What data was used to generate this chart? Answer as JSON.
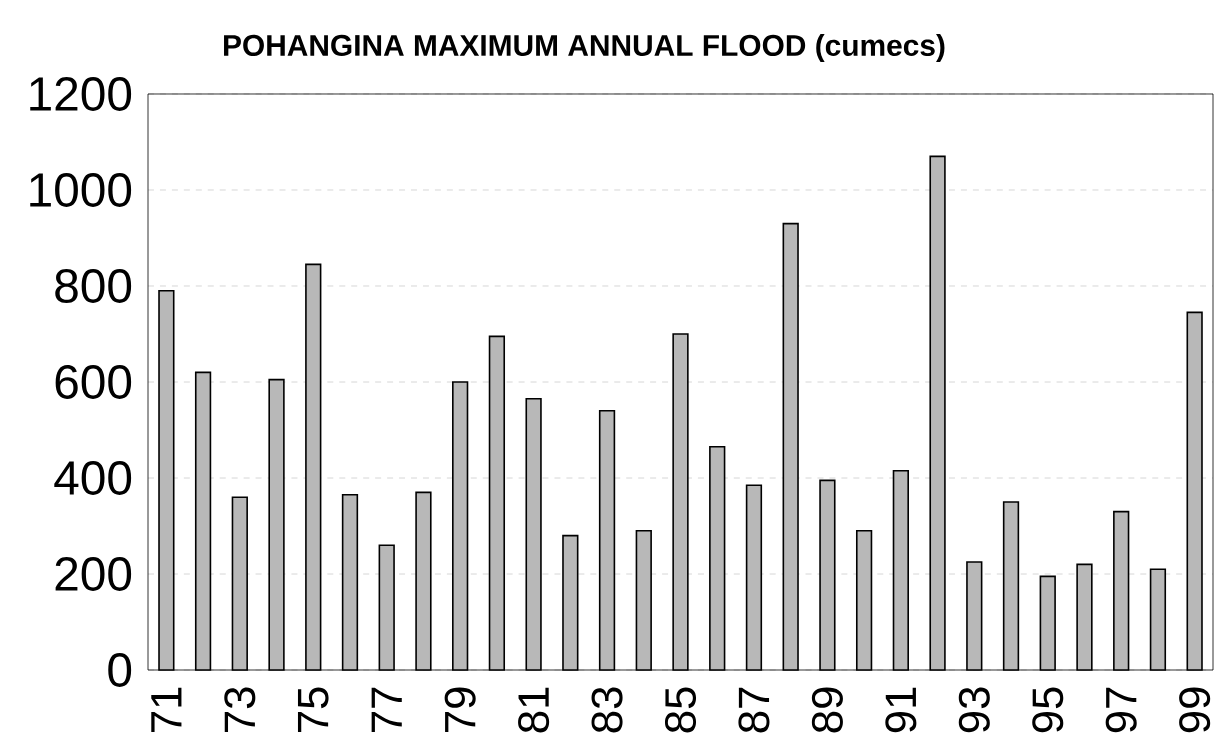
{
  "chart_data": {
    "type": "bar",
    "title": "POHANGINA MAXIMUM ANNUAL FLOOD (cumecs)",
    "categories": [
      "71",
      null,
      "73",
      null,
      "75",
      null,
      "77",
      null,
      "79",
      null,
      "81",
      null,
      "83",
      null,
      "85",
      null,
      "87",
      null,
      "89",
      null,
      "91",
      null,
      "93",
      null,
      "95",
      null,
      "97",
      null,
      "99"
    ],
    "values": [
      790,
      620,
      360,
      605,
      845,
      365,
      260,
      370,
      600,
      695,
      565,
      280,
      540,
      290,
      700,
      465,
      385,
      930,
      395,
      290,
      415,
      1070,
      225,
      350,
      195,
      220,
      330,
      210,
      745
    ],
    "color": "#b8b8b8",
    "ylim": [
      0,
      1200
    ],
    "yticks": [
      0,
      200,
      400,
      600,
      800,
      1000,
      1200
    ],
    "grid": "y"
  }
}
